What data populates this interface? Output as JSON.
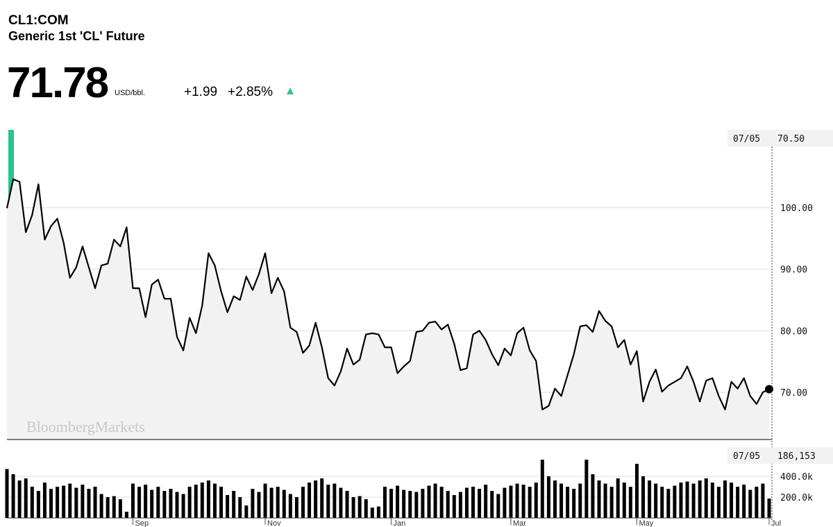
{
  "header": {
    "ticker": "CL1:COM",
    "name": "Generic 1st 'CL' Future",
    "price": "71.78",
    "unit": "USD/bbl.",
    "change": "+1.99",
    "change_pct": "+2.85%",
    "watermark": "BloombergMarkets"
  },
  "hover": {
    "date": "07/05",
    "price": "70.50",
    "volume": "186,153"
  },
  "chart_data": [
    {
      "type": "line",
      "color": "#000000",
      "area_color": "#f2f2f2",
      "grid": true,
      "values": [
        99.9,
        104.6,
        104.2,
        96,
        98.8,
        103.8,
        94.8,
        97,
        98.2,
        94.3,
        88.6,
        90.3,
        93.7,
        90.3,
        86.9,
        90.6,
        90.9,
        94.8,
        93.7,
        96.8,
        86.9,
        86.9,
        82.2,
        87.5,
        88.3,
        85.2,
        85.2,
        79,
        76.8,
        82.1,
        79.6,
        84.1,
        92.6,
        90.6,
        86.4,
        83,
        85.6,
        85,
        88.8,
        86.6,
        89.2,
        92.6,
        86.1,
        88.6,
        86.4,
        80.5,
        79.8,
        76.4,
        77.6,
        81.3,
        77.3,
        72.3,
        71.1,
        73.4,
        77.1,
        74.5,
        75.3,
        79.4,
        79.6,
        79.4,
        77.3,
        77.3,
        73.1,
        74.2,
        75.1,
        79.8,
        80,
        81.3,
        81.5,
        80.2,
        81,
        77.9,
        73.6,
        73.9,
        79.4,
        80,
        78.5,
        76.2,
        74.4,
        77.1,
        76,
        79.6,
        80.5,
        76.8,
        75.1,
        67.2,
        67.8,
        70.6,
        69.4,
        72.8,
        76.2,
        80.7,
        80.9,
        79.8,
        83.2,
        81.6,
        80.7,
        77.3,
        78.5,
        74.5,
        76.7,
        68.5,
        71.7,
        73.7,
        70.1,
        71.1,
        71.7,
        72.3,
        74.2,
        71.7,
        68.5,
        71.9,
        72.3,
        69.4,
        67.2,
        71.7,
        70.6,
        72.3,
        69.4,
        68.1,
        70,
        70.5
      ],
      "ylim": [
        62.33,
        112.63
      ],
      "yticks": [
        {
          "value": 70,
          "label": "70.00"
        },
        {
          "value": 80,
          "label": "80.00"
        },
        {
          "value": 90,
          "label": "90.00"
        },
        {
          "value": 100,
          "label": "100.00"
        }
      ]
    },
    {
      "type": "bar",
      "color": "#000000",
      "grid": true,
      "categories": [
        null,
        null,
        null,
        null,
        null,
        null,
        null,
        null,
        null,
        null,
        null,
        null,
        null,
        null,
        null,
        null,
        null,
        null,
        null,
        null,
        "Sep",
        null,
        null,
        null,
        null,
        null,
        null,
        null,
        null,
        null,
        null,
        null,
        null,
        null,
        null,
        null,
        null,
        null,
        null,
        null,
        null,
        "Nov",
        null,
        null,
        null,
        null,
        null,
        null,
        null,
        null,
        null,
        null,
        null,
        null,
        null,
        null,
        null,
        null,
        null,
        null,
        null,
        "Jan",
        null,
        null,
        null,
        null,
        null,
        null,
        null,
        null,
        null,
        null,
        null,
        null,
        null,
        null,
        null,
        null,
        null,
        null,
        "Mar",
        null,
        null,
        null,
        null,
        null,
        null,
        null,
        null,
        null,
        null,
        null,
        null,
        null,
        null,
        null,
        null,
        null,
        null,
        null,
        "May",
        null,
        null,
        null,
        null,
        null,
        null,
        null,
        null,
        null,
        null,
        null,
        null,
        null,
        null,
        null,
        null,
        null,
        null,
        null,
        null,
        "Jul"
      ],
      "values": [
        470000,
        420000,
        360000,
        380000,
        300000,
        260000,
        340000,
        280000,
        300000,
        310000,
        330000,
        290000,
        320000,
        280000,
        300000,
        230000,
        200000,
        210000,
        180000,
        60000,
        330000,
        300000,
        320000,
        270000,
        300000,
        260000,
        280000,
        250000,
        230000,
        300000,
        320000,
        340000,
        360000,
        330000,
        300000,
        220000,
        260000,
        200000,
        120000,
        280000,
        250000,
        330000,
        290000,
        300000,
        270000,
        230000,
        200000,
        300000,
        340000,
        360000,
        380000,
        320000,
        330000,
        290000,
        260000,
        200000,
        210000,
        180000,
        100000,
        110000,
        300000,
        280000,
        310000,
        270000,
        260000,
        250000,
        280000,
        310000,
        330000,
        300000,
        260000,
        220000,
        250000,
        290000,
        300000,
        280000,
        320000,
        260000,
        230000,
        290000,
        310000,
        330000,
        320000,
        300000,
        340000,
        560000,
        400000,
        360000,
        330000,
        300000,
        280000,
        330000,
        560000,
        420000,
        360000,
        330000,
        300000,
        380000,
        340000,
        300000,
        520000,
        400000,
        360000,
        330000,
        300000,
        280000,
        310000,
        340000,
        350000,
        330000,
        360000,
        380000,
        340000,
        300000,
        360000,
        340000,
        300000,
        320000,
        270000,
        300000,
        330000,
        186153
      ],
      "ylim": [
        0,
        666700
      ],
      "yticks": [
        {
          "value": 200000,
          "label": "200.0k"
        },
        {
          "value": 400000,
          "label": "400.0k"
        }
      ]
    }
  ]
}
